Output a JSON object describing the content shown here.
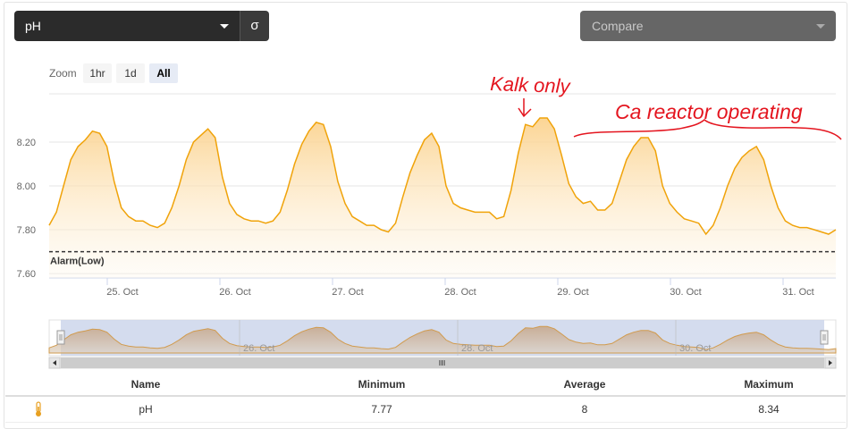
{
  "parameter_select": {
    "value": "pH"
  },
  "sigma_button": {
    "label": "σ"
  },
  "compare_select": {
    "placeholder": "Compare"
  },
  "zoom": {
    "label": "Zoom",
    "buttons": [
      "1hr",
      "1d",
      "All"
    ],
    "active": "All"
  },
  "alarm": {
    "label": "Alarm(Low)",
    "value": 7.7
  },
  "annotations": {
    "kalk": "Kalk only",
    "ca_reactor": "Ca reactor operating"
  },
  "colors": {
    "line": "#f0a30a",
    "fill_top": "#fbd088",
    "alarm": "#333333",
    "annotation": "#e4151f",
    "navigator_bg": "#ccd6eb"
  },
  "chart_data": {
    "type": "area",
    "title": "",
    "xlabel": "",
    "ylabel": "",
    "ylim": [
      7.58,
      8.42
    ],
    "yticks": [
      7.6,
      7.8,
      8.0,
      8.2
    ],
    "xticks": [
      "25. Oct",
      "26. Oct",
      "27. Oct",
      "28. Oct",
      "29. Oct",
      "30. Oct",
      "31. Oct"
    ],
    "x_range": [
      "24-Oct-2020 09:30",
      "31-Oct-2020 06:50"
    ],
    "grid": true,
    "series": [
      {
        "values": [
          7.82,
          7.88,
          8.0,
          8.12,
          8.18,
          8.21,
          8.25,
          8.24,
          8.18,
          8.02,
          7.9,
          7.86,
          7.84,
          7.84,
          7.82,
          7.81,
          7.83,
          7.9,
          8.0,
          8.12,
          8.2,
          8.23,
          8.26,
          8.22,
          8.04,
          7.92,
          7.87,
          7.85,
          7.84,
          7.84,
          7.83,
          7.84,
          7.88,
          7.98,
          8.1,
          8.19,
          8.25,
          8.29,
          8.28,
          8.18,
          8.02,
          7.92,
          7.86,
          7.84,
          7.82,
          7.82,
          7.8,
          7.79,
          7.83,
          7.95,
          8.06,
          8.14,
          8.21,
          8.24,
          8.18,
          8.0,
          7.92,
          7.9,
          7.89,
          7.88,
          7.88,
          7.88,
          7.85,
          7.86,
          7.98,
          8.15,
          8.28,
          8.27,
          8.31,
          8.31,
          8.26,
          8.14,
          8.01,
          7.95,
          7.92,
          7.93,
          7.89,
          7.89,
          7.92,
          8.02,
          8.12,
          8.18,
          8.22,
          8.22,
          8.16,
          8.0,
          7.92,
          7.88,
          7.85,
          7.84,
          7.83,
          7.78,
          7.82,
          7.9,
          8.0,
          8.08,
          8.13,
          8.16,
          8.18,
          8.12,
          8.0,
          7.9,
          7.84,
          7.82,
          7.81,
          7.81,
          7.8,
          7.79,
          7.78,
          7.8
        ]
      }
    ],
    "navigator": {
      "labels": [
        "26. Oct",
        "28. Oct",
        "30. Oct"
      ]
    }
  },
  "stats": {
    "headers": [
      "Name",
      "Minimum",
      "Average",
      "Maximum"
    ],
    "row": {
      "name": "pH",
      "minimum": "7.77",
      "average": "8",
      "maximum": "8.34"
    }
  }
}
